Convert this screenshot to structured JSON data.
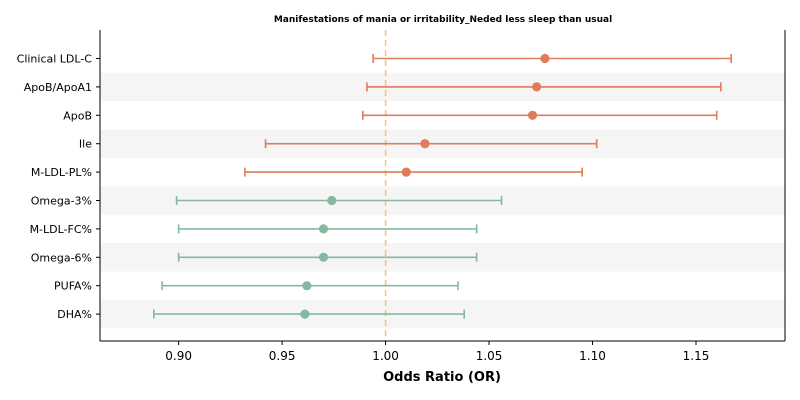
{
  "chart_data": {
    "type": "forest",
    "title": "Manifestations of mania or irritability_Neded less sleep than usual",
    "xlabel": "Odds Ratio (OR)",
    "xlim": [
      0.862,
      1.193
    ],
    "xticks": [
      0.9,
      0.95,
      1.0,
      1.05,
      1.1,
      1.15
    ],
    "xtick_labels": [
      "0.90",
      "0.95",
      "1.00",
      "1.05",
      "1.10",
      "1.15"
    ],
    "reference_line": 1.0,
    "reference_color": "#f3c677",
    "band_color": "#f5f5f5",
    "colors": {
      "increased": "#e07b5b",
      "decreased": "#86b8a0"
    },
    "rows": [
      {
        "label": "Clinical LDL-C",
        "or": 1.077,
        "lo": 0.994,
        "hi": 1.167,
        "group": "increased"
      },
      {
        "label": "ApoB/ApoA1",
        "or": 1.073,
        "lo": 0.991,
        "hi": 1.162,
        "group": "increased"
      },
      {
        "label": "ApoB",
        "or": 1.071,
        "lo": 0.989,
        "hi": 1.16,
        "group": "increased"
      },
      {
        "label": "Ile",
        "or": 1.019,
        "lo": 0.942,
        "hi": 1.102,
        "group": "increased"
      },
      {
        "label": "M-LDL-PL%",
        "or": 1.01,
        "lo": 0.932,
        "hi": 1.095,
        "group": "increased"
      },
      {
        "label": "Omega-3%",
        "or": 0.974,
        "lo": 0.899,
        "hi": 1.056,
        "group": "decreased"
      },
      {
        "label": "M-LDL-FC%",
        "or": 0.97,
        "lo": 0.9,
        "hi": 1.044,
        "group": "decreased"
      },
      {
        "label": "Omega-6%",
        "or": 0.97,
        "lo": 0.9,
        "hi": 1.044,
        "group": "decreased"
      },
      {
        "label": "PUFA%",
        "or": 0.962,
        "lo": 0.892,
        "hi": 1.035,
        "group": "decreased"
      },
      {
        "label": "DHA%",
        "or": 0.961,
        "lo": 0.888,
        "hi": 1.038,
        "group": "decreased"
      }
    ]
  }
}
